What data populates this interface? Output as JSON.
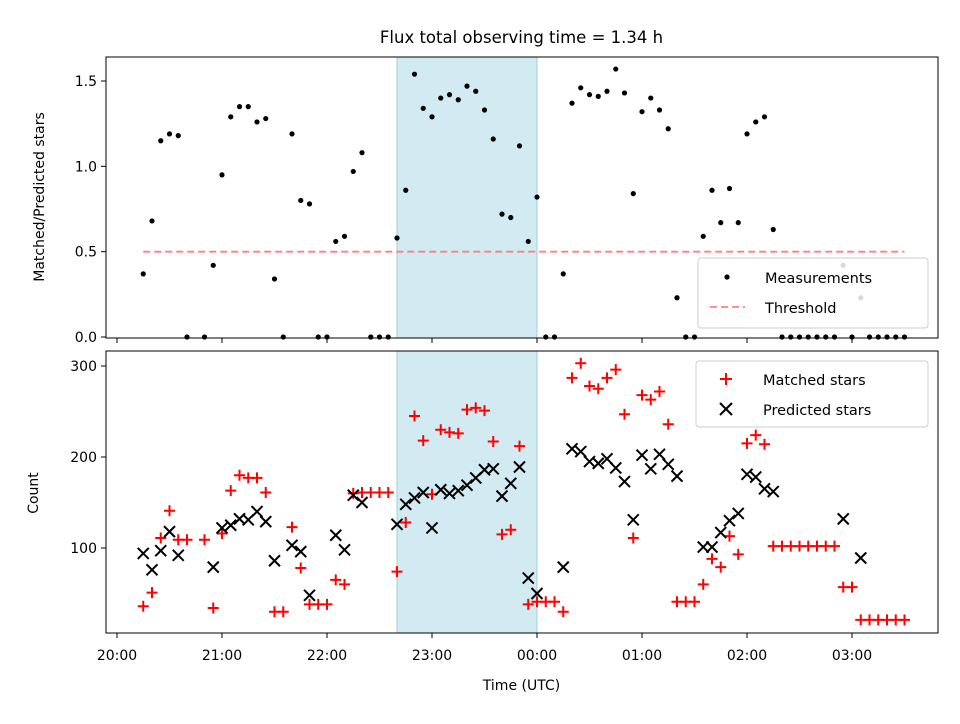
{
  "chart_data": [
    {
      "type": "scatter",
      "title": "Flux total observing time = 1.34 h",
      "ylabel": "Matched/Predicted stars",
      "ylim": [
        0,
        1.65
      ],
      "y_ticks": [
        "0.0",
        "0.5",
        "1.0",
        "1.5"
      ],
      "shaded_span": [
        "22:40",
        "00:00"
      ],
      "legend": {
        "position": "lower right",
        "entries": [
          "Measurements",
          "Threshold"
        ]
      },
      "series": [
        {
          "name": "Measurements",
          "marker": "dot",
          "color": "#000000",
          "points": [
            [
              "20:15",
              0.37
            ],
            [
              "20:20",
              0.68
            ],
            [
              "20:25",
              1.15
            ],
            [
              "20:30",
              1.19
            ],
            [
              "20:35",
              1.18
            ],
            [
              "20:40",
              0
            ],
            [
              "20:50",
              0
            ],
            [
              "20:55",
              0.42
            ],
            [
              "21:00",
              0.95
            ],
            [
              "21:05",
              1.29
            ],
            [
              "21:10",
              1.35
            ],
            [
              "21:15",
              1.35
            ],
            [
              "21:20",
              1.26
            ],
            [
              "21:25",
              1.28
            ],
            [
              "21:30",
              0.34
            ],
            [
              "21:35",
              0
            ],
            [
              "21:40",
              1.19
            ],
            [
              "21:45",
              0.8
            ],
            [
              "21:50",
              0.78
            ],
            [
              "21:55",
              0
            ],
            [
              "22:00",
              0
            ],
            [
              "22:05",
              0.56
            ],
            [
              "22:10",
              0.59
            ],
            [
              "22:15",
              0.97
            ],
            [
              "22:20",
              1.08
            ],
            [
              "22:25",
              0
            ],
            [
              "22:30",
              0
            ],
            [
              "22:35",
              0
            ],
            [
              "22:40",
              0.58
            ],
            [
              "22:45",
              0.86
            ],
            [
              "22:50",
              1.54
            ],
            [
              "22:55",
              1.34
            ],
            [
              "23:00",
              1.29
            ],
            [
              "23:05",
              1.4
            ],
            [
              "23:10",
              1.42
            ],
            [
              "23:15",
              1.39
            ],
            [
              "23:20",
              1.47
            ],
            [
              "23:25",
              1.44
            ],
            [
              "23:30",
              1.33
            ],
            [
              "23:35",
              1.16
            ],
            [
              "23:40",
              0.72
            ],
            [
              "23:45",
              0.7
            ],
            [
              "23:50",
              1.12
            ],
            [
              "23:55",
              0.56
            ],
            [
              "00:00",
              0.82
            ],
            [
              "00:05",
              0
            ],
            [
              "00:10",
              0
            ],
            [
              "00:15",
              0.37
            ],
            [
              "00:20",
              1.37
            ],
            [
              "00:25",
              1.46
            ],
            [
              "00:30",
              1.42
            ],
            [
              "00:35",
              1.41
            ],
            [
              "00:40",
              1.44
            ],
            [
              "00:45",
              1.57
            ],
            [
              "00:50",
              1.43
            ],
            [
              "00:55",
              0.84
            ],
            [
              "01:00",
              1.32
            ],
            [
              "01:05",
              1.4
            ],
            [
              "01:10",
              1.33
            ],
            [
              "01:15",
              1.22
            ],
            [
              "01:20",
              0.23
            ],
            [
              "01:25",
              0
            ],
            [
              "01:30",
              0
            ],
            [
              "01:35",
              0.59
            ],
            [
              "01:40",
              0.86
            ],
            [
              "01:45",
              0.67
            ],
            [
              "01:50",
              0.87
            ],
            [
              "01:55",
              0.67
            ],
            [
              "02:00",
              1.19
            ],
            [
              "02:05",
              1.26
            ],
            [
              "02:10",
              1.29
            ],
            [
              "02:15",
              0.63
            ],
            [
              "02:20",
              0
            ],
            [
              "02:25",
              0
            ],
            [
              "02:30",
              0
            ],
            [
              "02:35",
              0
            ],
            [
              "02:40",
              0
            ],
            [
              "02:45",
              0
            ],
            [
              "02:50",
              0
            ],
            [
              "02:55",
              0.42
            ],
            [
              "03:00",
              0
            ],
            [
              "03:05",
              0.23
            ],
            [
              "03:10",
              0
            ],
            [
              "03:15",
              0
            ],
            [
              "03:20",
              0
            ],
            [
              "03:25",
              0
            ],
            [
              "03:30",
              0
            ]
          ]
        },
        {
          "name": "Threshold",
          "marker": "dashed-line",
          "color": "#ff7f7f",
          "points": [
            [
              "20:15",
              0.5
            ],
            [
              "03:30",
              0.5
            ]
          ]
        }
      ]
    },
    {
      "type": "scatter",
      "xlabel": "Time (UTC)",
      "ylabel": "Count",
      "ylim": [
        8,
        315
      ],
      "y_ticks": [
        "100",
        "200",
        "300"
      ],
      "x_ticks": [
        "20:00",
        "21:00",
        "22:00",
        "23:00",
        "00:00",
        "01:00",
        "02:00",
        "03:00"
      ],
      "x_range": [
        "19:55",
        "03:50"
      ],
      "shaded_span": [
        "22:40",
        "00:00"
      ],
      "legend": {
        "position": "upper right",
        "entries": [
          "Matched stars",
          "Predicted stars"
        ]
      },
      "series": [
        {
          "name": "Matched stars",
          "marker": "plus",
          "color": "#ff0000",
          "points": [
            [
              "20:15",
              36
            ],
            [
              "20:20",
              51
            ],
            [
              "20:25",
              111
            ],
            [
              "20:30",
              141
            ],
            [
              "20:35",
              109
            ],
            [
              "20:40",
              109
            ],
            [
              "20:50",
              109
            ],
            [
              "20:55",
              34
            ],
            [
              "21:00",
              116
            ],
            [
              "21:05",
              163
            ],
            [
              "21:10",
              180
            ],
            [
              "21:15",
              177
            ],
            [
              "21:20",
              177
            ],
            [
              "21:25",
              161
            ],
            [
              "21:30",
              30
            ],
            [
              "21:35",
              30
            ],
            [
              "21:40",
              123
            ],
            [
              "21:45",
              78
            ],
            [
              "21:50",
              38
            ],
            [
              "21:55",
              38
            ],
            [
              "22:00",
              38
            ],
            [
              "22:05",
              65
            ],
            [
              "22:10",
              60
            ],
            [
              "22:15",
              160
            ],
            [
              "22:20",
              161
            ],
            [
              "22:25",
              161
            ],
            [
              "22:30",
              161
            ],
            [
              "22:35",
              161
            ],
            [
              "22:40",
              74
            ],
            [
              "22:45",
              128
            ],
            [
              "22:50",
              245
            ],
            [
              "22:55",
              218
            ],
            [
              "23:00",
              159
            ],
            [
              "23:05",
              230
            ],
            [
              "23:10",
              227
            ],
            [
              "23:15",
              226
            ],
            [
              "23:20",
              252
            ],
            [
              "23:25",
              254
            ],
            [
              "23:30",
              251
            ],
            [
              "23:35",
              217
            ],
            [
              "23:40",
              115
            ],
            [
              "23:45",
              120
            ],
            [
              "23:50",
              212
            ],
            [
              "23:55",
              38
            ],
            [
              "00:00",
              41
            ],
            [
              "00:05",
              41
            ],
            [
              "00:10",
              41
            ],
            [
              "00:15",
              30
            ],
            [
              "00:20",
              287
            ],
            [
              "00:25",
              303
            ],
            [
              "00:30",
              278
            ],
            [
              "00:35",
              275
            ],
            [
              "00:40",
              287
            ],
            [
              "00:45",
              296
            ],
            [
              "00:50",
              247
            ],
            [
              "00:55",
              111
            ],
            [
              "01:00",
              268
            ],
            [
              "01:05",
              263
            ],
            [
              "01:10",
              272
            ],
            [
              "01:15",
              236
            ],
            [
              "01:20",
              41
            ],
            [
              "01:25",
              41
            ],
            [
              "01:30",
              41
            ],
            [
              "01:35",
              60
            ],
            [
              "01:40",
              88
            ],
            [
              "01:45",
              79
            ],
            [
              "01:50",
              113
            ],
            [
              "01:55",
              93
            ],
            [
              "02:00",
              215
            ],
            [
              "02:05",
              224
            ],
            [
              "02:10",
              214
            ],
            [
              "02:15",
              102
            ],
            [
              "02:20",
              102
            ],
            [
              "02:25",
              102
            ],
            [
              "02:30",
              102
            ],
            [
              "02:35",
              102
            ],
            [
              "02:40",
              102
            ],
            [
              "02:45",
              102
            ],
            [
              "02:50",
              102
            ],
            [
              "02:55",
              57
            ],
            [
              "03:00",
              57
            ],
            [
              "03:05",
              21
            ],
            [
              "03:10",
              21
            ],
            [
              "03:15",
              21
            ],
            [
              "03:20",
              21
            ],
            [
              "03:25",
              21
            ],
            [
              "03:30",
              21
            ]
          ]
        },
        {
          "name": "Predicted stars",
          "marker": "x",
          "color": "#000000",
          "points": [
            [
              "20:15",
              94
            ],
            [
              "20:20",
              76
            ],
            [
              "20:25",
              97
            ],
            [
              "20:30",
              118
            ],
            [
              "20:35",
              92
            ],
            [
              "20:55",
              79
            ],
            [
              "21:00",
              122
            ],
            [
              "21:05",
              125
            ],
            [
              "21:10",
              132
            ],
            [
              "21:15",
              131
            ],
            [
              "21:20",
              140
            ],
            [
              "21:25",
              129
            ],
            [
              "21:30",
              86
            ],
            [
              "21:40",
              103
            ],
            [
              "21:45",
              96
            ],
            [
              "21:50",
              48
            ],
            [
              "22:05",
              114
            ],
            [
              "22:10",
              98
            ],
            [
              "22:15",
              158
            ],
            [
              "22:20",
              150
            ],
            [
              "22:40",
              126
            ],
            [
              "22:45",
              148
            ],
            [
              "22:50",
              155
            ],
            [
              "22:55",
              161
            ],
            [
              "23:00",
              122
            ],
            [
              "23:05",
              164
            ],
            [
              "23:10",
              160
            ],
            [
              "23:15",
              163
            ],
            [
              "23:20",
              169
            ],
            [
              "23:25",
              177
            ],
            [
              "23:30",
              186
            ],
            [
              "23:35",
              187
            ],
            [
              "23:40",
              157
            ],
            [
              "23:45",
              171
            ],
            [
              "23:50",
              189
            ],
            [
              "23:55",
              67
            ],
            [
              "00:00",
              50
            ],
            [
              "00:15",
              79
            ],
            [
              "00:20",
              209
            ],
            [
              "00:25",
              206
            ],
            [
              "00:30",
              195
            ],
            [
              "00:35",
              193
            ],
            [
              "00:40",
              198
            ],
            [
              "00:45",
              188
            ],
            [
              "00:50",
              173
            ],
            [
              "00:55",
              131
            ],
            [
              "01:00",
              202
            ],
            [
              "01:05",
              187
            ],
            [
              "01:10",
              203
            ],
            [
              "01:15",
              192
            ],
            [
              "01:20",
              179
            ],
            [
              "01:35",
              101
            ],
            [
              "01:40",
              101
            ],
            [
              "01:45",
              117
            ],
            [
              "01:50",
              130
            ],
            [
              "01:55",
              138
            ],
            [
              "02:00",
              181
            ],
            [
              "02:05",
              178
            ],
            [
              "02:10",
              165
            ],
            [
              "02:15",
              162
            ],
            [
              "02:55",
              132
            ],
            [
              "03:05",
              89
            ]
          ]
        }
      ]
    }
  ]
}
